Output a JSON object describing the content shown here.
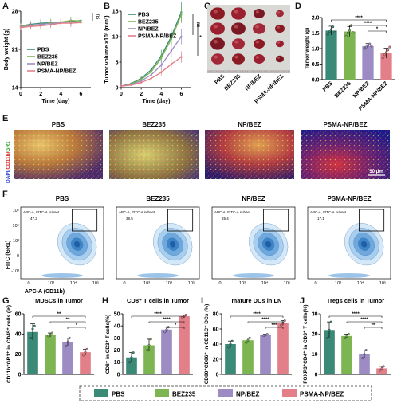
{
  "panel_labels": [
    "A",
    "B",
    "C",
    "D",
    "E",
    "F",
    "G",
    "H",
    "I",
    "J"
  ],
  "groups": [
    "PBS",
    "BEZ235",
    "NP/BEZ",
    "PSMA-NP/BEZ"
  ],
  "colors": {
    "PBS": "#3a8a77",
    "BEZ235": "#7cb551",
    "NP/BEZ": "#9d8cc4",
    "PSMA-NP/BEZ": "#e27f88"
  },
  "legend_labels": [
    "PBS",
    "BEZ235",
    "NP/BEZ",
    "PSMA-NP/BEZ"
  ],
  "if_titles": [
    "PBS",
    "BEZ235",
    "NP/BEZ",
    "PSMA-NP/BEZ"
  ],
  "if_ylabel": {
    "dapi": "DAPI/",
    "cd11b": "CD11b/",
    "gr1": "GR1"
  },
  "scale_bar": "50 μm",
  "flow_titles": [
    "PBS",
    "BEZ235",
    "NP/BEZ",
    "PSMA-NP/BEZ"
  ],
  "flow_gate_label": "APC-A, FITC-A subset",
  "flow_percent": [
    "47.2",
    "38.5",
    "25.4",
    "17.1"
  ],
  "flow_xlabel": "APC-A (CD11b)",
  "flow_ylabel": "FITC (GR1)",
  "flow_ticks_y": [
    "10⁵",
    "10⁴",
    "10³",
    "0",
    "-10³"
  ],
  "flow_ticks_x": [
    "0",
    "10³",
    "10⁴",
    "10⁵"
  ],
  "chart_data": [
    {
      "panel": "A",
      "type": "line",
      "xlabel": "Time (day)",
      "ylabel": "Body weight (g)",
      "xlim": [
        0,
        7
      ],
      "ylim": [
        14,
        28
      ],
      "xticks": [
        0,
        2,
        4,
        6
      ],
      "yticks": [
        14,
        21,
        28
      ],
      "x": [
        0,
        1,
        2,
        3,
        4,
        5,
        6
      ],
      "series": [
        {
          "name": "PBS",
          "values": [
            25.3,
            25.6,
            25.8,
            25.9,
            26.0,
            26.1,
            26.3
          ],
          "errors": [
            0.5,
            0.6,
            0.8,
            0.6,
            0.6,
            0.6,
            0.5
          ]
        },
        {
          "name": "BEZ235",
          "values": [
            25.2,
            25.4,
            25.5,
            25.9,
            26.0,
            26.3,
            26.2
          ],
          "errors": [
            0.5,
            0.5,
            0.9,
            0.7,
            0.6,
            0.7,
            0.6
          ]
        },
        {
          "name": "NP/BEZ",
          "values": [
            25.1,
            25.3,
            25.6,
            25.7,
            25.9,
            25.8,
            26.0
          ],
          "errors": [
            0.5,
            0.6,
            0.7,
            0.6,
            0.6,
            0.7,
            0.6
          ]
        },
        {
          "name": "PSMA-NP/BEZ",
          "values": [
            25.0,
            25.2,
            25.3,
            25.5,
            25.8,
            25.8,
            25.9
          ],
          "errors": [
            0.5,
            0.5,
            0.6,
            0.6,
            0.6,
            0.6,
            0.6
          ]
        }
      ],
      "annotations": [
        "ns"
      ]
    },
    {
      "panel": "B",
      "type": "line",
      "xlabel": "Time (day)",
      "ylabel": "Tumor volume ×10³ (mm³)",
      "xlim": [
        0,
        7
      ],
      "ylim": [
        0,
        15
      ],
      "xticks": [
        0,
        2,
        4,
        6
      ],
      "yticks": [
        0,
        5,
        10,
        15
      ],
      "x": [
        0,
        1,
        2,
        3,
        4,
        5,
        6
      ],
      "series": [
        {
          "name": "PBS",
          "values": [
            0.3,
            0.8,
            1.8,
            3.5,
            6.2,
            10.0,
            14.8
          ],
          "errors": [
            0.1,
            0.2,
            0.4,
            0.7,
            1.2,
            1.5,
            2.0
          ]
        },
        {
          "name": "BEZ235",
          "values": [
            0.3,
            0.7,
            1.6,
            3.1,
            5.8,
            9.5,
            14.3
          ],
          "errors": [
            0.1,
            0.2,
            0.4,
            0.6,
            1.0,
            1.4,
            1.6
          ]
        },
        {
          "name": "NP/BEZ",
          "values": [
            0.3,
            0.6,
            1.3,
            2.5,
            4.4,
            7.2,
            10.0
          ],
          "errors": [
            0.1,
            0.2,
            0.3,
            0.5,
            0.8,
            1.1,
            1.5
          ]
        },
        {
          "name": "PSMA-NP/BEZ",
          "values": [
            0.3,
            0.5,
            1.0,
            1.8,
            3.0,
            4.6,
            6.0
          ],
          "errors": [
            0.1,
            0.1,
            0.3,
            0.4,
            0.6,
            0.9,
            1.1
          ]
        }
      ],
      "annotations": [
        "ns",
        "*"
      ]
    },
    {
      "panel": "D",
      "type": "bar",
      "ylabel": "Tumor weight (g)",
      "ylim": [
        0,
        2.0
      ],
      "yticks": [
        0.0,
        0.5,
        1.0,
        1.5,
        2.0
      ],
      "categories": [
        "PBS",
        "BEZ235",
        "NP/BEZ",
        "PSMA-NP/BEZ"
      ],
      "values": [
        1.58,
        1.55,
        1.08,
        0.85
      ],
      "errors": [
        0.14,
        0.16,
        0.08,
        0.16
      ],
      "points": [
        [
          1.45,
          1.55,
          1.62,
          1.7,
          1.52
        ],
        [
          1.4,
          1.5,
          1.58,
          1.75,
          1.52
        ],
        [
          1.0,
          1.05,
          1.1,
          1.15,
          1.08
        ],
        [
          0.7,
          0.8,
          0.88,
          0.95,
          1.05
        ]
      ],
      "significance": [
        "****",
        "****",
        "*"
      ]
    },
    {
      "panel": "G",
      "type": "bar",
      "title": "MDSCs in Tumor",
      "ylabel": "CD11b⁺GR1⁺ in CD45⁺ cells (%)",
      "ylim": [
        0,
        60
      ],
      "yticks": [
        0,
        20,
        40,
        60
      ],
      "categories": [
        "PBS",
        "BEZ235",
        "NP/BEZ",
        "PSMA-NP/BEZ"
      ],
      "values": [
        42,
        39,
        32,
        22
      ],
      "errors": [
        8,
        2,
        4,
        3
      ],
      "points": [
        [
          36,
          45,
          48
        ],
        [
          38,
          39,
          41
        ],
        [
          28,
          32,
          36
        ],
        [
          19,
          22,
          25
        ]
      ],
      "significance": [
        "**",
        "**",
        "*"
      ]
    },
    {
      "panel": "H",
      "type": "bar",
      "title": "CD8⁺ T cells in Tumor",
      "ylabel": "CD8⁺ in CD3⁺ T cells(%)",
      "ylim": [
        0,
        50
      ],
      "yticks": [
        0,
        10,
        20,
        30,
        40,
        50
      ],
      "categories": [
        "PBS",
        "BEZ235",
        "NP/BEZ",
        "PSMA-NP/BEZ"
      ],
      "values": [
        14,
        24,
        37,
        48
      ],
      "errors": [
        4,
        5,
        2,
        1
      ],
      "points": [
        [
          10,
          14,
          18
        ],
        [
          20,
          24,
          29
        ],
        [
          35,
          37,
          39
        ],
        [
          47,
          48,
          49
        ]
      ],
      "significance": [
        "****",
        "****",
        "*"
      ]
    },
    {
      "panel": "I",
      "type": "bar",
      "title": "mature DCs in LN",
      "ylabel": "CD80⁺CD86⁺ in CD11C⁺ DCs (%)",
      "ylim": [
        0,
        80
      ],
      "yticks": [
        0,
        20,
        40,
        60,
        80
      ],
      "categories": [
        "PBS",
        "BEZ235",
        "NP/BEZ",
        "PSMA-NP/BEZ"
      ],
      "values": [
        40,
        45,
        52,
        68
      ],
      "errors": [
        4,
        3,
        1,
        3
      ],
      "points": [
        [
          36,
          40,
          44
        ],
        [
          42,
          45,
          48
        ],
        [
          51,
          52,
          53
        ],
        [
          65,
          68,
          71
        ]
      ],
      "significance": [
        "****",
        "****",
        "***"
      ]
    },
    {
      "panel": "J",
      "type": "bar",
      "title": "Tregs cells in Tumor",
      "ylabel": "FOXP3⁺CD4⁺ in CD3⁺ T cells(%)",
      "ylim": [
        0,
        30
      ],
      "yticks": [
        0,
        10,
        20,
        30
      ],
      "categories": [
        "PBS",
        "BEZ235",
        "NP/BEZ",
        "PSMA-NP/BEZ"
      ],
      "values": [
        22,
        19,
        10,
        3
      ],
      "errors": [
        4,
        1,
        2,
        1
      ],
      "points": [
        [
          18,
          22,
          26
        ],
        [
          18,
          19,
          20
        ],
        [
          8,
          10,
          12
        ],
        [
          2,
          3,
          4
        ]
      ],
      "significance": [
        "****",
        "****",
        "**"
      ]
    }
  ]
}
